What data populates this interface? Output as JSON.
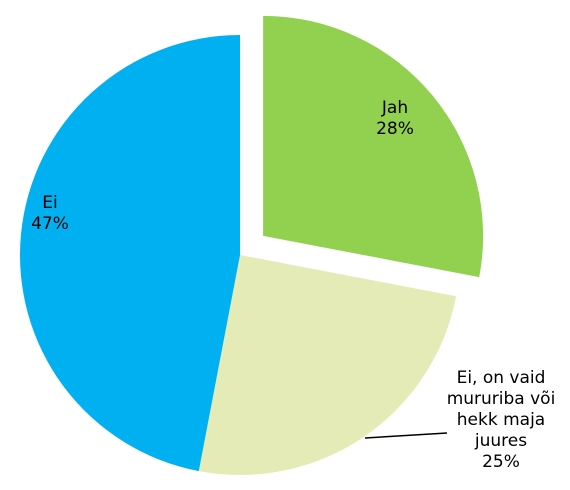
{
  "chart_data": {
    "type": "pie",
    "categories": [
      "Jah",
      "Ei, on vaid mururiba või hekk maja juures",
      "Ei"
    ],
    "values": [
      28,
      25,
      47
    ],
    "value_labels": [
      "28%",
      "25%",
      "47%"
    ],
    "colors": [
      "#92d050",
      "#e4ebb6",
      "#00b0f0"
    ],
    "explode": [
      true,
      false,
      false
    ]
  }
}
